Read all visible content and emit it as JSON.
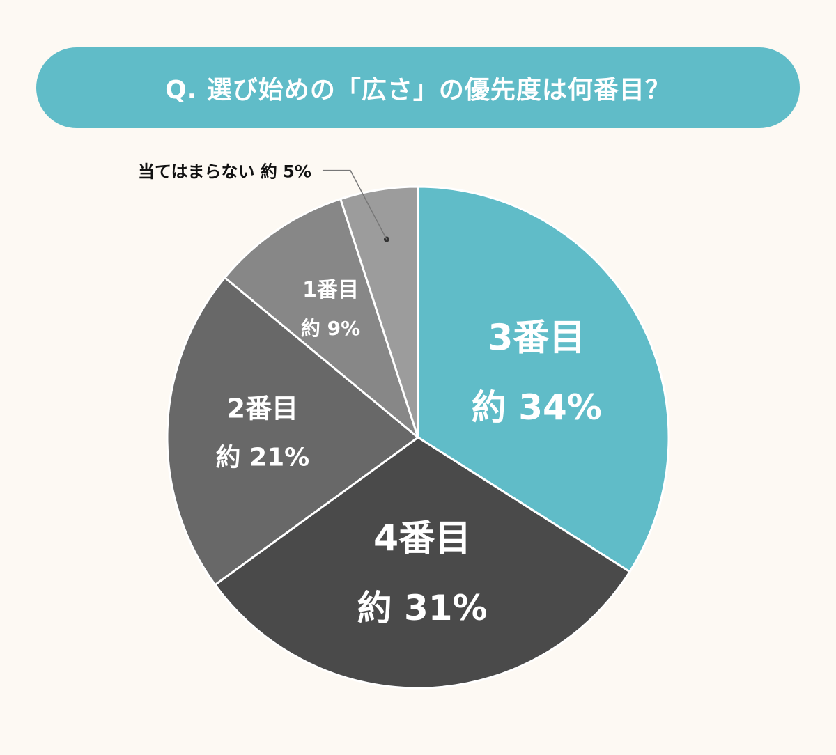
{
  "title": "Q. 選び始めの「広さ」の優先度は何番目？",
  "chart_data": {
    "type": "pie",
    "title": "Q. 選び始めの「広さ」の優先度は何番目？",
    "start_angle_deg": 0,
    "direction": "clockwise",
    "slices": [
      {
        "label": "3番目",
        "value_label": "約 34%",
        "value": 34,
        "color": "#60bcc8",
        "text_color": "#ffffff",
        "size": "large"
      },
      {
        "label": "4番目",
        "value_label": "約 31%",
        "value": 31,
        "color": "#4a4a4a",
        "text_color": "#ffffff",
        "size": "large"
      },
      {
        "label": "2番目",
        "value_label": "約 21%",
        "value": 21,
        "color": "#686868",
        "text_color": "#ffffff",
        "size": "medium"
      },
      {
        "label": "1番目",
        "value_label": "約 9%",
        "value": 9,
        "color": "#878787",
        "text_color": "#ffffff",
        "size": "small"
      },
      {
        "label": "当てはまらない",
        "value_label": "約 5%",
        "value": 5,
        "color": "#9c9c9c",
        "text_color": "#111111",
        "size": "callout"
      }
    ]
  }
}
